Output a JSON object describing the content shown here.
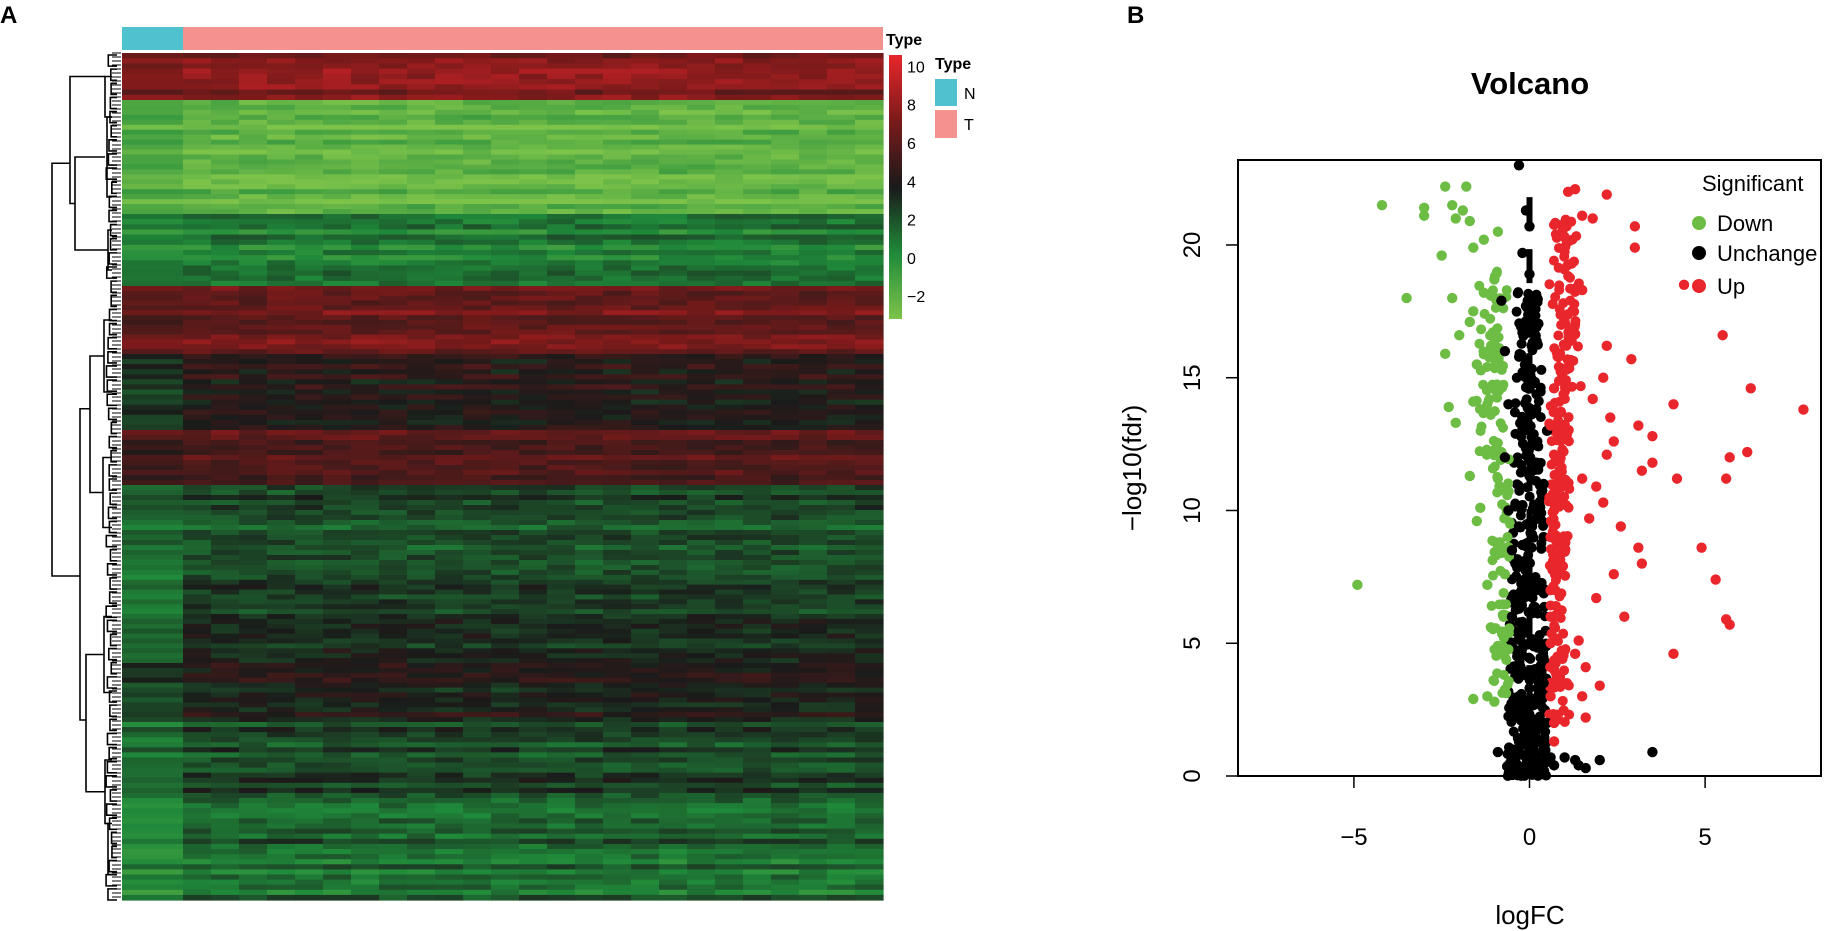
{
  "panels": {
    "a_label": "A",
    "b_label": "B"
  },
  "heatmap": {
    "annotation_title": "Type",
    "legend_title": "Type",
    "groups": [
      {
        "name": "N",
        "color": "#4FC1CF",
        "sample_fraction": 0.08
      },
      {
        "name": "T",
        "color": "#F4928F",
        "sample_fraction": 0.92
      }
    ],
    "color_scale": {
      "ticks": [
        "10",
        "8",
        "6",
        "4",
        "2",
        "0",
        "−2"
      ],
      "tick_values": [
        10,
        8,
        6,
        4,
        2,
        0,
        -2
      ],
      "range": [
        -3.2,
        10.6
      ],
      "colors": [
        "#7DC34A",
        "#1F8A3A",
        "#1A1A1A",
        "#7A1A1A",
        "#E8262B"
      ]
    },
    "row_blocks": [
      {
        "fraction": 0.055,
        "level": 7.5,
        "normal_level": 7.0
      },
      {
        "fraction": 0.135,
        "level": -2.4,
        "normal_level": -1.8
      },
      {
        "fraction": 0.085,
        "level": 0.6,
        "normal_level": 0.3
      },
      {
        "fraction": 0.08,
        "level": 6.6,
        "normal_level": 6.2
      },
      {
        "fraction": 0.09,
        "level": 4.2,
        "normal_level": 3.0
      },
      {
        "fraction": 0.065,
        "level": 5.8,
        "normal_level": 5.2
      },
      {
        "fraction": 0.1,
        "level": 2.2,
        "normal_level": 1.5
      },
      {
        "fraction": 0.11,
        "level": 2.9,
        "normal_level": 1.2
      },
      {
        "fraction": 0.07,
        "level": 3.8,
        "normal_level": 2.5
      },
      {
        "fraction": 0.09,
        "level": 2.4,
        "normal_level": 1.0
      },
      {
        "fraction": 0.06,
        "level": 1.8,
        "normal_level": 0.6
      },
      {
        "fraction": 0.06,
        "level": 1.2,
        "normal_level": 0.4
      }
    ]
  },
  "chart_data": {
    "type": "scatter",
    "title": "Volcano",
    "xlabel": "logFC",
    "ylabel": "−log10(fdr)",
    "xlim": [
      -8.3,
      8.3
    ],
    "ylim": [
      0,
      23.2
    ],
    "x_ticks": [
      -5,
      0,
      5
    ],
    "x_tick_labels": [
      "−5",
      "0",
      "5"
    ],
    "y_ticks": [
      0,
      5,
      10,
      15,
      20
    ],
    "y_tick_labels": [
      "0",
      "5",
      "10",
      "15",
      "20"
    ],
    "legend_title": "Significant",
    "series": [
      {
        "name": "Down",
        "color": "#6DBD45",
        "points": [
          [
            -4.9,
            7.2
          ],
          [
            -3.5,
            18.0
          ],
          [
            -4.2,
            21.5
          ],
          [
            -3.0,
            21.4
          ],
          [
            -3.0,
            21.1
          ],
          [
            -2.4,
            22.2
          ],
          [
            -2.2,
            21.5
          ],
          [
            -2.1,
            21.0
          ],
          [
            -1.8,
            22.2
          ],
          [
            -1.9,
            21.3
          ],
          [
            -1.7,
            20.9
          ],
          [
            -2.5,
            19.6
          ],
          [
            -1.6,
            19.9
          ],
          [
            -2.2,
            18.0
          ],
          [
            -1.6,
            17.5
          ],
          [
            -2.4,
            15.9
          ],
          [
            -2.3,
            13.9
          ],
          [
            -2.1,
            13.3
          ],
          [
            -1.5,
            15.5
          ],
          [
            -1.6,
            14.1
          ],
          [
            -1.1,
            14.6
          ],
          [
            -0.9,
            20.5
          ],
          [
            -1.3,
            20.2
          ],
          [
            -1.0,
            18.7
          ],
          [
            -1.7,
            11.3
          ],
          [
            -1.5,
            9.6
          ],
          [
            -1.4,
            10.1
          ],
          [
            -1.2,
            7.2
          ],
          [
            -1.1,
            5.6
          ],
          [
            -0.9,
            4.9
          ],
          [
            -1.6,
            2.9
          ],
          [
            -1.2,
            3.0
          ],
          [
            -1.0,
            2.8
          ],
          [
            -1.3,
            18.2
          ],
          [
            -1.7,
            17.1
          ],
          [
            -2.0,
            16.6
          ],
          [
            -0.8,
            17.9
          ],
          [
            -0.8,
            12.2
          ],
          [
            -0.9,
            11.2
          ],
          [
            -0.8,
            8.4
          ],
          [
            -0.7,
            7.6
          ]
        ]
      },
      {
        "name": "Unchange",
        "color": "#000000",
        "points": [
          [
            -0.3,
            23.0
          ],
          [
            -0.1,
            21.3
          ],
          [
            0.0,
            20.7
          ],
          [
            -0.2,
            19.7
          ],
          [
            0.0,
            18.9
          ],
          [
            -0.1,
            17.7
          ],
          [
            -0.2,
            16.7
          ],
          [
            -0.1,
            15.5
          ],
          [
            0.0,
            14.6
          ],
          [
            -0.1,
            13.4
          ],
          [
            -0.1,
            12.4
          ],
          [
            0.0,
            11.3
          ],
          [
            -0.2,
            10.2
          ],
          [
            -0.3,
            9.4
          ],
          [
            -0.2,
            8.7
          ],
          [
            -0.4,
            8.0
          ],
          [
            -0.2,
            7.1
          ],
          [
            -0.3,
            6.3
          ],
          [
            -0.2,
            5.4
          ],
          [
            -0.3,
            4.6
          ],
          [
            -0.2,
            3.8
          ],
          [
            -0.3,
            3.0
          ],
          [
            -0.2,
            2.2
          ],
          [
            -0.3,
            1.3
          ],
          [
            -0.5,
            1.0
          ],
          [
            -0.2,
            0.8
          ],
          [
            0.4,
            0.9
          ],
          [
            0.6,
            0.7
          ],
          [
            1.3,
            0.6
          ],
          [
            1.0,
            0.7
          ],
          [
            1.4,
            0.4
          ],
          [
            2.0,
            0.6
          ],
          [
            3.5,
            0.9
          ],
          [
            -0.9,
            0.9
          ],
          [
            -0.6,
            0.4
          ],
          [
            -0.3,
            0.3
          ],
          [
            0.2,
            0.2
          ],
          [
            0.7,
            0.4
          ],
          [
            1.6,
            0.3
          ],
          [
            -0.8,
            17.9
          ],
          [
            -0.7,
            16.0
          ],
          [
            -0.6,
            14.0
          ],
          [
            -0.7,
            12.0
          ],
          [
            -0.6,
            10.0
          ],
          [
            -0.5,
            8.5
          ],
          [
            -0.5,
            6.0
          ],
          [
            0.5,
            13.0
          ],
          [
            0.4,
            11.0
          ],
          [
            0.4,
            9.0
          ],
          [
            0.3,
            7.0
          ],
          [
            0.3,
            5.0
          ],
          [
            0.4,
            3.5
          ],
          [
            0.5,
            2.0
          ]
        ]
      },
      {
        "name": "Up",
        "color": "#E8262B",
        "points": [
          [
            1.3,
            22.1
          ],
          [
            2.2,
            21.9
          ],
          [
            1.5,
            21.1
          ],
          [
            1.8,
            21.0
          ],
          [
            3.0,
            20.7
          ],
          [
            3.0,
            19.9
          ],
          [
            4.4,
            18.5
          ],
          [
            1.1,
            22.0
          ],
          [
            1.0,
            20.3
          ],
          [
            1.2,
            19.3
          ],
          [
            1.5,
            18.3
          ],
          [
            1.0,
            17.1
          ],
          [
            1.2,
            16.4
          ],
          [
            0.8,
            15.8
          ],
          [
            0.7,
            14.6
          ],
          [
            0.6,
            13.2
          ],
          [
            0.7,
            12.1
          ],
          [
            0.8,
            11.0
          ],
          [
            0.7,
            10.0
          ],
          [
            0.6,
            9.0
          ],
          [
            0.7,
            8.0
          ],
          [
            0.6,
            7.0
          ],
          [
            0.7,
            6.0
          ],
          [
            0.6,
            5.0
          ],
          [
            0.7,
            4.0
          ],
          [
            0.6,
            3.0
          ],
          [
            0.7,
            2.0
          ],
          [
            0.7,
            1.3
          ],
          [
            2.2,
            16.2
          ],
          [
            2.9,
            15.7
          ],
          [
            2.1,
            15.0
          ],
          [
            1.8,
            14.2
          ],
          [
            2.3,
            13.5
          ],
          [
            2.4,
            12.6
          ],
          [
            2.2,
            12.1
          ],
          [
            1.5,
            11.2
          ],
          [
            1.9,
            10.9
          ],
          [
            2.1,
            10.3
          ],
          [
            1.7,
            9.7
          ],
          [
            2.6,
            9.4
          ],
          [
            3.1,
            8.6
          ],
          [
            3.2,
            8.0
          ],
          [
            2.4,
            7.6
          ],
          [
            1.9,
            6.7
          ],
          [
            2.7,
            6.0
          ],
          [
            1.4,
            5.1
          ],
          [
            1.3,
            4.6
          ],
          [
            1.6,
            4.1
          ],
          [
            2.0,
            3.4
          ],
          [
            1.5,
            3.0
          ],
          [
            1.6,
            2.2
          ],
          [
            4.1,
            14.0
          ],
          [
            5.5,
            16.6
          ],
          [
            6.3,
            14.6
          ],
          [
            7.8,
            13.8
          ],
          [
            3.5,
            12.8
          ],
          [
            3.5,
            11.8
          ],
          [
            4.2,
            11.2
          ],
          [
            5.7,
            12.0
          ],
          [
            6.2,
            12.2
          ],
          [
            5.6,
            11.2
          ],
          [
            4.9,
            8.6
          ],
          [
            5.3,
            7.4
          ],
          [
            5.6,
            5.9
          ],
          [
            5.7,
            5.7
          ],
          [
            4.1,
            4.6
          ],
          [
            3.1,
            13.2
          ],
          [
            3.2,
            11.5
          ]
        ]
      }
    ],
    "threshold_line": {
      "x": 0,
      "style": "dashed"
    }
  }
}
